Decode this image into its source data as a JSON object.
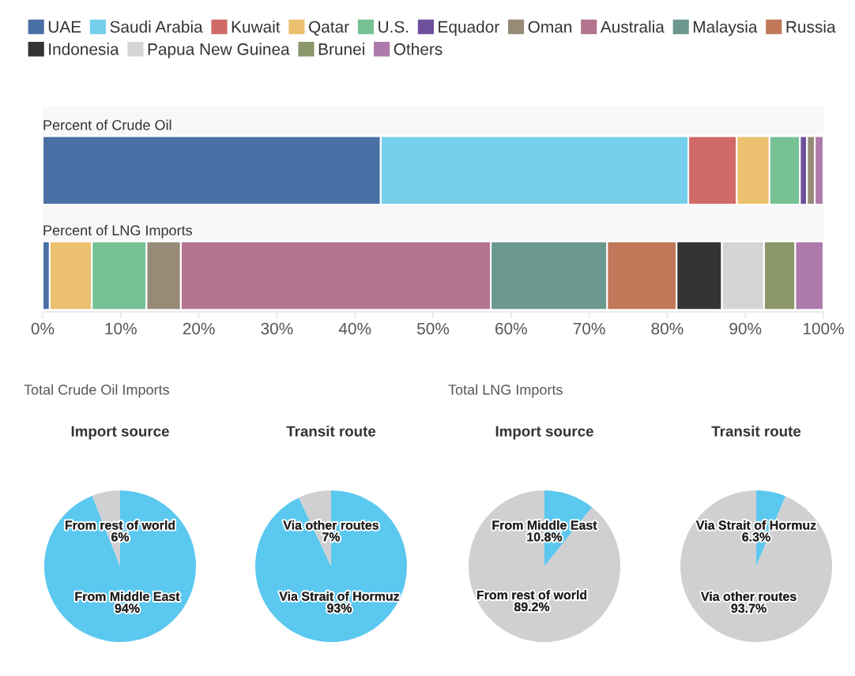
{
  "chart_data": [
    {
      "type": "bar",
      "orientation": "horizontal",
      "stacked": true,
      "legend": "top left",
      "grid": false,
      "categories": [
        "Percent of Crude Oil",
        "Percent of LNG Imports"
      ],
      "xlim": [
        0,
        100
      ],
      "xticks": [
        {
          "value": 0,
          "label": "0%"
        },
        {
          "value": 10,
          "label": "10%"
        },
        {
          "value": 20,
          "label": "20%"
        },
        {
          "value": 30,
          "label": "30%"
        },
        {
          "value": 40,
          "label": "40%"
        },
        {
          "value": 50,
          "label": "50%"
        },
        {
          "value": 60,
          "label": "60%"
        },
        {
          "value": 70,
          "label": "70%"
        },
        {
          "value": 80,
          "label": "80%"
        },
        {
          "value": 90,
          "label": "90%"
        },
        {
          "value": 100,
          "label": "100%"
        }
      ],
      "series": [
        {
          "name": "UAE",
          "color": "#4a6fa5",
          "values": [
            43.3,
            0.9
          ]
        },
        {
          "name": "Saudi Arabia",
          "color": "#76cfec",
          "values": [
            39.4,
            null
          ]
        },
        {
          "name": "Kuwait",
          "color": "#d06a66",
          "values": [
            6.2,
            null
          ]
        },
        {
          "name": "Qatar",
          "color": "#ebc06f",
          "values": [
            4.2,
            5.4
          ]
        },
        {
          "name": "U.S.",
          "color": "#75c194",
          "values": [
            3.9,
            7.0
          ]
        },
        {
          "name": "Equador",
          "color": "#6e4f9c",
          "values": [
            0.9,
            null
          ]
        },
        {
          "name": "Oman",
          "color": "#978b78",
          "values": [
            1.0,
            4.4
          ]
        },
        {
          "name": "Australia",
          "color": "#b4748f",
          "values": [
            null,
            39.7
          ]
        },
        {
          "name": "Malaysia",
          "color": "#6b988e",
          "values": [
            null,
            14.9
          ]
        },
        {
          "name": "Russia",
          "color": "#c07858",
          "values": [
            null,
            8.9
          ]
        },
        {
          "name": "Indonesia",
          "color": "#323334",
          "values": [
            null,
            5.8
          ]
        },
        {
          "name": "Papua New Guinea",
          "color": "#d5d5d6",
          "values": [
            null,
            5.4
          ]
        },
        {
          "name": "Brunei",
          "color": "#8b966a",
          "values": [
            null,
            4.0
          ]
        },
        {
          "name": "Others",
          "color": "#ad7aab",
          "values": [
            1.1,
            3.6
          ]
        }
      ]
    },
    {
      "type": "pie",
      "title": "Import source",
      "annotations": [
        "Total Crude Oil Imports"
      ],
      "categories": [
        "From Middle East",
        "From rest of world"
      ],
      "values": [
        94,
        6
      ],
      "value_labels": [
        "94%",
        "6%"
      ],
      "colors": [
        "#5bc8ef",
        "#d0d0d2"
      ]
    },
    {
      "type": "pie",
      "title": "Transit route",
      "categories": [
        "Via Strait of Hormuz",
        "Via other routes"
      ],
      "values": [
        93,
        7
      ],
      "value_labels": [
        "93%",
        "7%"
      ],
      "colors": [
        "#5bc8ef",
        "#d0d0d2"
      ]
    },
    {
      "type": "pie",
      "title": "Import source",
      "annotations": [
        "Total LNG Imports"
      ],
      "categories": [
        "From Middle East",
        "From rest of world"
      ],
      "values": [
        10.8,
        89.2
      ],
      "value_labels": [
        "10.8%",
        "89.2%"
      ],
      "colors": [
        "#5bc8ef",
        "#d0d0d2"
      ]
    },
    {
      "type": "pie",
      "title": "Transit route",
      "categories": [
        "Via Strait of Hormuz",
        "Via other routes"
      ],
      "values": [
        6.3,
        93.7
      ],
      "value_labels": [
        "6.3%",
        "93.7%"
      ],
      "colors": [
        "#5bc8ef",
        "#d0d0d2"
      ]
    }
  ]
}
